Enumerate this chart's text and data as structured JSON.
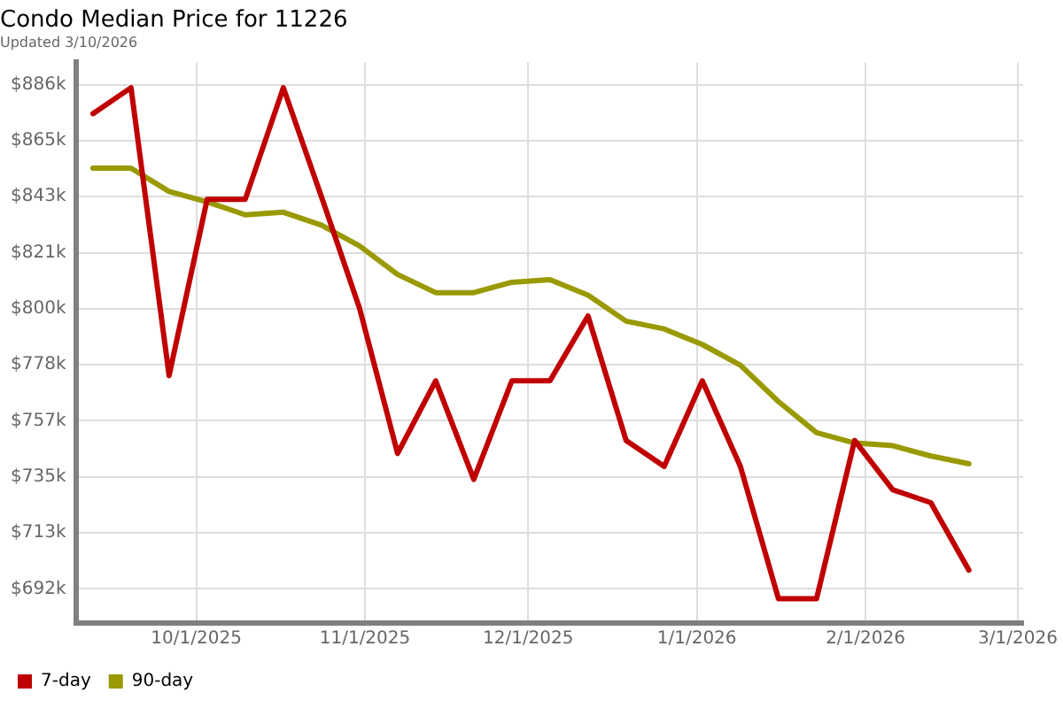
{
  "chart_data": {
    "type": "line",
    "title": "Condo Median Price for 11226",
    "subtitle": "Updated 3/10/2026",
    "x": [
      "2025-09-12",
      "2025-09-19",
      "2025-09-26",
      "2025-10-03",
      "2025-10-10",
      "2025-10-17",
      "2025-10-24",
      "2025-10-31",
      "2025-11-07",
      "2025-11-14",
      "2025-11-21",
      "2025-11-28",
      "2025-12-05",
      "2025-12-12",
      "2025-12-19",
      "2025-12-26",
      "2026-01-02",
      "2026-01-09",
      "2026-01-16",
      "2026-01-23",
      "2026-01-30",
      "2026-02-06",
      "2026-02-13",
      "2026-02-20"
    ],
    "series": [
      {
        "name": "7-day",
        "color": "#c00000",
        "values": [
          875,
          885,
          774,
          842,
          842,
          885,
          843,
          800,
          744,
          772,
          734,
          772,
          772,
          797,
          749,
          739,
          772,
          739,
          688,
          688,
          749,
          730,
          725,
          699
        ]
      },
      {
        "name": "90-day",
        "color": "#999900",
        "values": [
          854,
          854,
          845,
          841,
          836,
          837,
          832,
          824,
          813,
          806,
          806,
          810,
          811,
          805,
          795,
          792,
          786,
          778,
          764,
          752,
          748,
          747,
          743,
          740
        ]
      }
    ],
    "xlim": [
      "2025-09-09",
      "2026-03-02"
    ],
    "xticks": [
      {
        "value": "2025-10-01",
        "label": "10/1/2025"
      },
      {
        "value": "2025-11-01",
        "label": "11/1/2025"
      },
      {
        "value": "2025-12-01",
        "label": "12/1/2025"
      },
      {
        "value": "2026-01-01",
        "label": "1/1/2026"
      },
      {
        "value": "2026-02-01",
        "label": "2/1/2026"
      },
      {
        "value": "2026-03-01",
        "label": "3/1/2026"
      }
    ],
    "ylim": [
      678.6,
      894.8
    ],
    "yticks": [
      {
        "value": 691.8,
        "label": "$692k"
      },
      {
        "value": 713.4,
        "label": "$713k"
      },
      {
        "value": 735,
        "label": "$735k"
      },
      {
        "value": 756.6,
        "label": "$757k"
      },
      {
        "value": 778.2,
        "label": "$778k"
      },
      {
        "value": 799.8,
        "label": "$800k"
      },
      {
        "value": 821.4,
        "label": "$821k"
      },
      {
        "value": 843,
        "label": "$843k"
      },
      {
        "value": 864.6,
        "label": "$865k"
      },
      {
        "value": 886.2,
        "label": "$886k"
      }
    ],
    "grid": true,
    "legend": "bottom left",
    "marker": "none",
    "line_style": "solid"
  }
}
